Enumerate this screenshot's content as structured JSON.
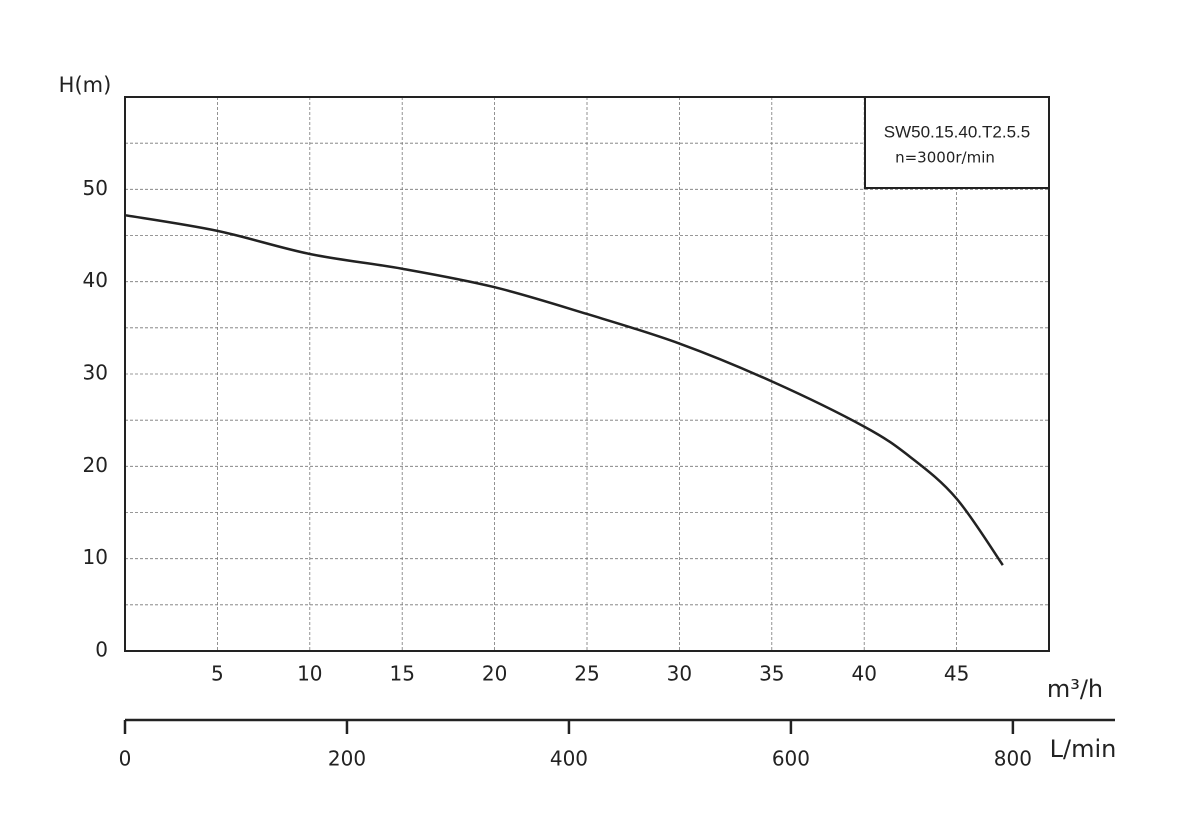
{
  "chart_data": {
    "type": "line",
    "ylabel": "H(m)",
    "xlabel": "m³/h",
    "x2label": "L/min",
    "legend_title": "SW50.15.40.T2.5.5",
    "legend_subtitle": "n=3000r/min",
    "x": [
      0,
      5,
      10,
      15,
      20,
      25,
      30,
      35,
      40,
      42.5,
      45,
      47.5
    ],
    "series": [
      {
        "color": "#222222",
        "values": [
          47.2,
          45.5,
          43,
          41.4,
          39.4,
          36.5,
          33.3,
          29.2,
          24.3,
          21,
          16.5,
          9.3
        ]
      }
    ],
    "xlim": [
      0,
      50
    ],
    "xticks": [
      5,
      10,
      15,
      20,
      25,
      30,
      35,
      40,
      45
    ],
    "ylim": [
      0,
      60
    ],
    "yticks": [
      0,
      10,
      20,
      30,
      40,
      50
    ],
    "yminor": [
      5,
      15,
      25,
      35,
      45,
      55
    ],
    "x2lim": [
      0,
      892
    ],
    "x2ticks": [
      0,
      200,
      400,
      600,
      800
    ],
    "grid": true
  }
}
